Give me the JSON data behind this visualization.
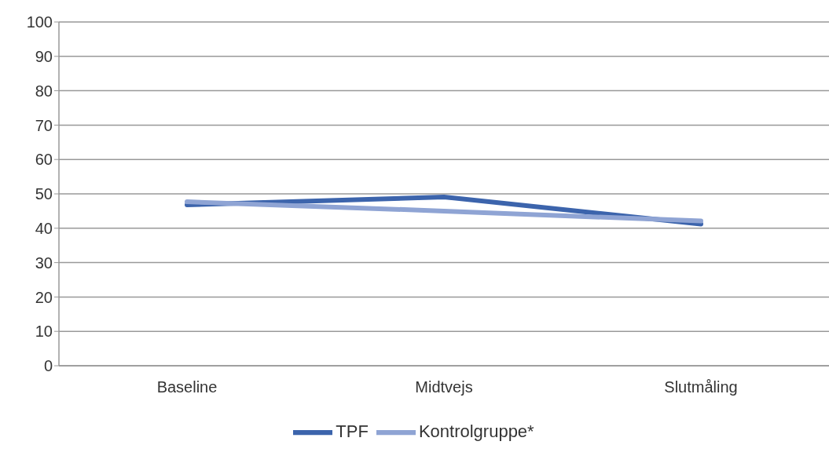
{
  "chart_data": {
    "type": "line",
    "categories": [
      "Baseline",
      "Midtvejs",
      "Slutmåling"
    ],
    "series": [
      {
        "name": "TPF",
        "color": "#3c64ac",
        "values": [
          46.8,
          49.1,
          41.2
        ]
      },
      {
        "name": "Kontrolgruppe*",
        "color": "#8fa4d4",
        "values": [
          47.7,
          45.0,
          42.1
        ]
      }
    ],
    "ylim": [
      0,
      100
    ],
    "yticks": [
      0,
      10,
      20,
      30,
      40,
      50,
      60,
      70,
      80,
      90,
      100
    ],
    "grid": "y",
    "legend": "bottom",
    "marker": "none",
    "line_style": "solid"
  }
}
